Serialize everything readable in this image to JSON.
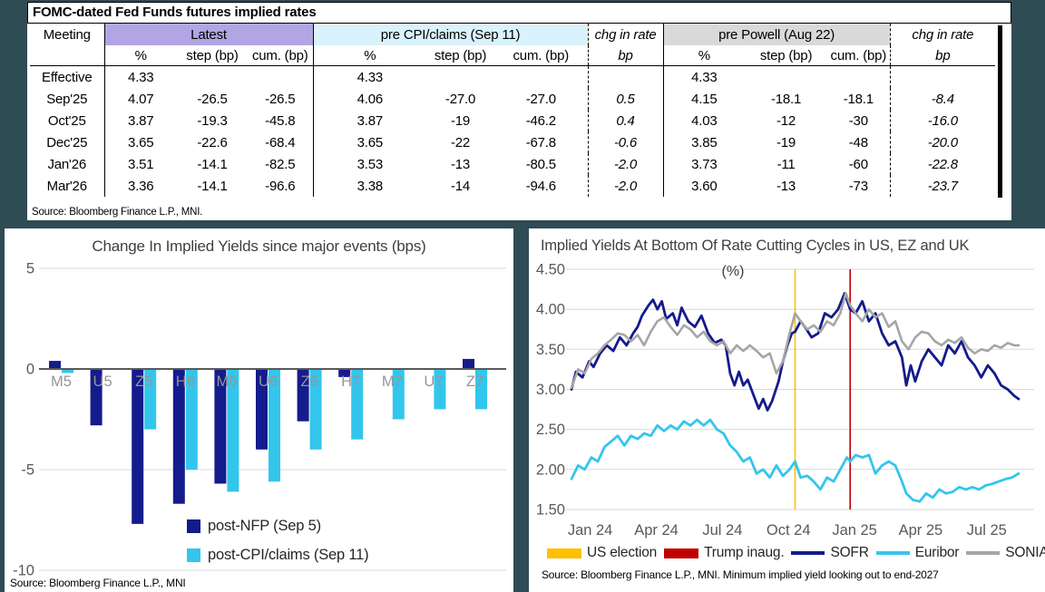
{
  "background_color": "#2F4B54",
  "table": {
    "title": "FOMC-dated Fed Funds futures implied rates",
    "meeting_header": "Meeting",
    "groups": [
      {
        "label": "Latest",
        "bg": "#B2A5E3"
      },
      {
        "label": "pre CPI/claims (Sep 11)",
        "bg": "#DAF2FB"
      },
      {
        "label": "chg in rate"
      },
      {
        "label": "pre Powell (Aug 22)",
        "bg": "#D9D9D9"
      },
      {
        "label": "chg in rate"
      }
    ],
    "sub_headers": [
      "%",
      "step (bp)",
      "cum. (bp)",
      "%",
      "step (bp)",
      "cum. (bp)",
      "bp",
      "%",
      "step (bp)",
      "cum. (bp)",
      "bp"
    ],
    "rows": [
      {
        "meeting": "Effective",
        "cells": [
          "4.33",
          "",
          "",
          "4.33",
          "",
          "",
          "",
          "4.33",
          "",
          "",
          ""
        ]
      },
      {
        "meeting": "Sep'25",
        "cells": [
          "4.07",
          "-26.5",
          "-26.5",
          "4.06",
          "-27.0",
          "-27.0",
          "0.5",
          "4.15",
          "-18.1",
          "-18.1",
          "-8.4"
        ]
      },
      {
        "meeting": "Oct'25",
        "cells": [
          "3.87",
          "-19.3",
          "-45.8",
          "3.87",
          "-19",
          "-46.2",
          "0.4",
          "4.03",
          "-12",
          "-30",
          "-16.0"
        ]
      },
      {
        "meeting": "Dec'25",
        "cells": [
          "3.65",
          "-22.6",
          "-68.4",
          "3.65",
          "-22",
          "-67.8",
          "-0.6",
          "3.85",
          "-19",
          "-48",
          "-20.0"
        ]
      },
      {
        "meeting": "Jan'26",
        "cells": [
          "3.51",
          "-14.1",
          "-82.5",
          "3.53",
          "-13",
          "-80.5",
          "-2.0",
          "3.73",
          "-11",
          "-60",
          "-22.8"
        ]
      },
      {
        "meeting": "Mar'26",
        "cells": [
          "3.36",
          "-14.1",
          "-96.6",
          "3.38",
          "-14",
          "-94.6",
          "-2.0",
          "3.60",
          "-13",
          "-73",
          "-23.7"
        ]
      }
    ],
    "source": "Source: Bloomberg Finance L.P., MNI."
  },
  "chart_data": [
    {
      "type": "bar",
      "title": "Change In Implied Yields since major events (bps)",
      "categories": [
        "M5",
        "U5",
        "Z5",
        "H6",
        "M6",
        "U6",
        "Z6",
        "H7",
        "M7",
        "U7",
        "Z7"
      ],
      "series": [
        {
          "name": "post-NFP (Sep 5)",
          "color": "#141B8C",
          "values": [
            0.4,
            -2.8,
            -7.7,
            -6.7,
            -5.7,
            -4.0,
            -2.6,
            -0.4,
            0,
            0,
            0.5
          ]
        },
        {
          "name": "post-CPI/claims (Sep 11)",
          "color": "#33C6EC",
          "values": [
            -0.2,
            0,
            -3.0,
            -5.0,
            -6.1,
            -5.6,
            -4.0,
            -3.5,
            -2.5,
            -2.0,
            -2.0
          ]
        }
      ],
      "xlabel": "",
      "ylabel": "",
      "ylim": [
        -10,
        5
      ],
      "yticks": [
        5,
        0,
        -5,
        -10
      ],
      "grid": true,
      "legend_position": "bottom-center",
      "source": "Source: Bloomberg Finance L.P., MNI"
    },
    {
      "type": "line",
      "title": "Implied Yields At Bottom Of Rate Cutting Cycles in US, EZ and UK",
      "subtitle": "(%)",
      "x_unit": "months since Jan 2024",
      "xlim_months": [
        0,
        21
      ],
      "ylim": [
        1.5,
        4.5
      ],
      "yticks": [
        "4.50",
        "4.00",
        "3.50",
        "3.00",
        "2.50",
        "2.00",
        "1.50"
      ],
      "xticks": [
        "Jan 24",
        "Apr 24",
        "Jul 24",
        "Oct 24",
        "Jan 25",
        "Apr 25",
        "Jul 25"
      ],
      "grid": true,
      "legend_position": "bottom",
      "events": [
        {
          "name": "US election",
          "color": "#FFC000",
          "x": 10.15
        },
        {
          "name": "Trump inaug.",
          "color": "#C00000",
          "x": 12.65
        }
      ],
      "series": [
        {
          "name": "SOFR",
          "color": "#141B8C",
          "points": [
            [
              0.0,
              3.0
            ],
            [
              0.2,
              3.22
            ],
            [
              0.5,
              3.15
            ],
            [
              0.8,
              3.35
            ],
            [
              1.0,
              3.28
            ],
            [
              1.3,
              3.45
            ],
            [
              1.6,
              3.55
            ],
            [
              1.9,
              3.48
            ],
            [
              2.2,
              3.65
            ],
            [
              2.5,
              3.55
            ],
            [
              2.8,
              3.7
            ],
            [
              3.0,
              3.78
            ],
            [
              3.2,
              3.92
            ],
            [
              3.5,
              4.05
            ],
            [
              3.7,
              4.12
            ],
            [
              3.9,
              4.0
            ],
            [
              4.1,
              4.1
            ],
            [
              4.3,
              3.88
            ],
            [
              4.6,
              3.95
            ],
            [
              4.8,
              3.8
            ],
            [
              5.0,
              4.02
            ],
            [
              5.3,
              3.85
            ],
            [
              5.6,
              3.78
            ],
            [
              5.9,
              3.92
            ],
            [
              6.2,
              3.7
            ],
            [
              6.5,
              3.58
            ],
            [
              6.8,
              3.62
            ],
            [
              7.0,
              3.55
            ],
            [
              7.2,
              3.2
            ],
            [
              7.4,
              3.05
            ],
            [
              7.6,
              3.22
            ],
            [
              7.8,
              3.05
            ],
            [
              8.0,
              3.12
            ],
            [
              8.3,
              2.9
            ],
            [
              8.5,
              2.76
            ],
            [
              8.7,
              2.88
            ],
            [
              8.9,
              2.74
            ],
            [
              9.1,
              2.85
            ],
            [
              9.4,
              3.1
            ],
            [
              9.6,
              3.35
            ],
            [
              9.8,
              3.55
            ],
            [
              10.0,
              3.7
            ],
            [
              10.15,
              3.72
            ],
            [
              10.4,
              3.85
            ],
            [
              10.6,
              3.78
            ],
            [
              10.9,
              3.65
            ],
            [
              11.2,
              3.7
            ],
            [
              11.5,
              3.95
            ],
            [
              11.8,
              3.9
            ],
            [
              12.1,
              4.0
            ],
            [
              12.4,
              4.2
            ],
            [
              12.65,
              4.0
            ],
            [
              12.9,
              3.95
            ],
            [
              13.2,
              4.1
            ],
            [
              13.5,
              3.85
            ],
            [
              13.8,
              3.95
            ],
            [
              14.1,
              3.7
            ],
            [
              14.4,
              3.55
            ],
            [
              14.7,
              3.6
            ],
            [
              15.0,
              3.4
            ],
            [
              15.2,
              3.05
            ],
            [
              15.4,
              3.3
            ],
            [
              15.6,
              3.1
            ],
            [
              15.9,
              3.35
            ],
            [
              16.2,
              3.5
            ],
            [
              16.5,
              3.4
            ],
            [
              16.8,
              3.3
            ],
            [
              17.1,
              3.55
            ],
            [
              17.4,
              3.45
            ],
            [
              17.7,
              3.6
            ],
            [
              18.0,
              3.4
            ],
            [
              18.3,
              3.3
            ],
            [
              18.6,
              3.15
            ],
            [
              18.9,
              3.3
            ],
            [
              19.2,
              3.2
            ],
            [
              19.5,
              3.05
            ],
            [
              19.8,
              3.0
            ],
            [
              20.1,
              2.92
            ],
            [
              20.3,
              2.88
            ]
          ]
        },
        {
          "name": "Euribor",
          "color": "#33C6EC",
          "points": [
            [
              0.0,
              1.88
            ],
            [
              0.3,
              2.05
            ],
            [
              0.6,
              2.0
            ],
            [
              0.9,
              2.15
            ],
            [
              1.2,
              2.1
            ],
            [
              1.5,
              2.28
            ],
            [
              1.8,
              2.35
            ],
            [
              2.1,
              2.42
            ],
            [
              2.4,
              2.3
            ],
            [
              2.7,
              2.42
            ],
            [
              3.0,
              2.38
            ],
            [
              3.3,
              2.45
            ],
            [
              3.6,
              2.42
            ],
            [
              3.9,
              2.55
            ],
            [
              4.2,
              2.48
            ],
            [
              4.5,
              2.55
            ],
            [
              4.8,
              2.5
            ],
            [
              5.1,
              2.6
            ],
            [
              5.4,
              2.55
            ],
            [
              5.7,
              2.62
            ],
            [
              6.0,
              2.55
            ],
            [
              6.3,
              2.62
            ],
            [
              6.6,
              2.5
            ],
            [
              6.9,
              2.45
            ],
            [
              7.2,
              2.3
            ],
            [
              7.5,
              2.22
            ],
            [
              7.8,
              2.1
            ],
            [
              8.1,
              2.15
            ],
            [
              8.4,
              1.95
            ],
            [
              8.7,
              2.0
            ],
            [
              9.0,
              1.9
            ],
            [
              9.3,
              2.05
            ],
            [
              9.6,
              1.92
            ],
            [
              9.9,
              2.0
            ],
            [
              10.15,
              2.1
            ],
            [
              10.4,
              1.9
            ],
            [
              10.7,
              1.92
            ],
            [
              11.0,
              1.85
            ],
            [
              11.3,
              1.75
            ],
            [
              11.6,
              1.9
            ],
            [
              11.9,
              1.85
            ],
            [
              12.2,
              2.0
            ],
            [
              12.5,
              2.15
            ],
            [
              12.65,
              2.1
            ],
            [
              12.9,
              2.18
            ],
            [
              13.2,
              2.15
            ],
            [
              13.5,
              2.18
            ],
            [
              13.8,
              1.95
            ],
            [
              14.1,
              2.05
            ],
            [
              14.4,
              2.1
            ],
            [
              14.7,
              2.05
            ],
            [
              15.0,
              1.85
            ],
            [
              15.2,
              1.7
            ],
            [
              15.5,
              1.62
            ],
            [
              15.8,
              1.6
            ],
            [
              16.1,
              1.7
            ],
            [
              16.4,
              1.65
            ],
            [
              16.7,
              1.75
            ],
            [
              17.0,
              1.7
            ],
            [
              17.3,
              1.72
            ],
            [
              17.6,
              1.78
            ],
            [
              17.9,
              1.75
            ],
            [
              18.2,
              1.78
            ],
            [
              18.5,
              1.75
            ],
            [
              18.8,
              1.8
            ],
            [
              19.1,
              1.82
            ],
            [
              19.4,
              1.85
            ],
            [
              19.7,
              1.88
            ],
            [
              20.0,
              1.9
            ],
            [
              20.3,
              1.95
            ]
          ]
        },
        {
          "name": "SONIA",
          "color": "#A6A6A6",
          "points": [
            [
              0.0,
              3.02
            ],
            [
              0.3,
              3.25
            ],
            [
              0.6,
              3.2
            ],
            [
              0.9,
              3.38
            ],
            [
              1.2,
              3.45
            ],
            [
              1.5,
              3.55
            ],
            [
              1.8,
              3.62
            ],
            [
              2.1,
              3.7
            ],
            [
              2.4,
              3.68
            ],
            [
              2.7,
              3.6
            ],
            [
              3.0,
              3.68
            ],
            [
              3.3,
              3.55
            ],
            [
              3.6,
              3.72
            ],
            [
              3.9,
              3.85
            ],
            [
              4.2,
              3.9
            ],
            [
              4.5,
              3.78
            ],
            [
              4.8,
              3.68
            ],
            [
              5.1,
              3.8
            ],
            [
              5.4,
              3.75
            ],
            [
              5.7,
              3.65
            ],
            [
              6.0,
              3.72
            ],
            [
              6.3,
              3.6
            ],
            [
              6.6,
              3.55
            ],
            [
              6.9,
              3.6
            ],
            [
              7.2,
              3.45
            ],
            [
              7.5,
              3.55
            ],
            [
              7.8,
              3.48
            ],
            [
              8.1,
              3.55
            ],
            [
              8.4,
              3.48
            ],
            [
              8.7,
              3.4
            ],
            [
              9.0,
              3.45
            ],
            [
              9.3,
              3.2
            ],
            [
              9.6,
              3.35
            ],
            [
              9.9,
              3.7
            ],
            [
              10.15,
              3.95
            ],
            [
              10.4,
              3.85
            ],
            [
              10.7,
              3.75
            ],
            [
              11.0,
              3.8
            ],
            [
              11.3,
              3.72
            ],
            [
              11.6,
              3.85
            ],
            [
              11.9,
              3.8
            ],
            [
              12.2,
              3.95
            ],
            [
              12.45,
              4.2
            ],
            [
              12.65,
              4.05
            ],
            [
              12.9,
              3.95
            ],
            [
              13.2,
              3.85
            ],
            [
              13.5,
              4.0
            ],
            [
              13.8,
              3.9
            ],
            [
              14.1,
              3.95
            ],
            [
              14.4,
              3.78
            ],
            [
              14.7,
              3.85
            ],
            [
              15.0,
              3.6
            ],
            [
              15.3,
              3.5
            ],
            [
              15.6,
              3.65
            ],
            [
              15.9,
              3.72
            ],
            [
              16.2,
              3.7
            ],
            [
              16.5,
              3.6
            ],
            [
              16.8,
              3.55
            ],
            [
              17.1,
              3.62
            ],
            [
              17.4,
              3.58
            ],
            [
              17.7,
              3.65
            ],
            [
              18.0,
              3.52
            ],
            [
              18.3,
              3.45
            ],
            [
              18.6,
              3.5
            ],
            [
              18.9,
              3.48
            ],
            [
              19.2,
              3.55
            ],
            [
              19.5,
              3.52
            ],
            [
              19.8,
              3.58
            ],
            [
              20.1,
              3.55
            ],
            [
              20.3,
              3.55
            ]
          ]
        }
      ],
      "source": "Source: Bloomberg Finance L.P., MNI. Minimum implied yield looking out to end-2027"
    }
  ]
}
